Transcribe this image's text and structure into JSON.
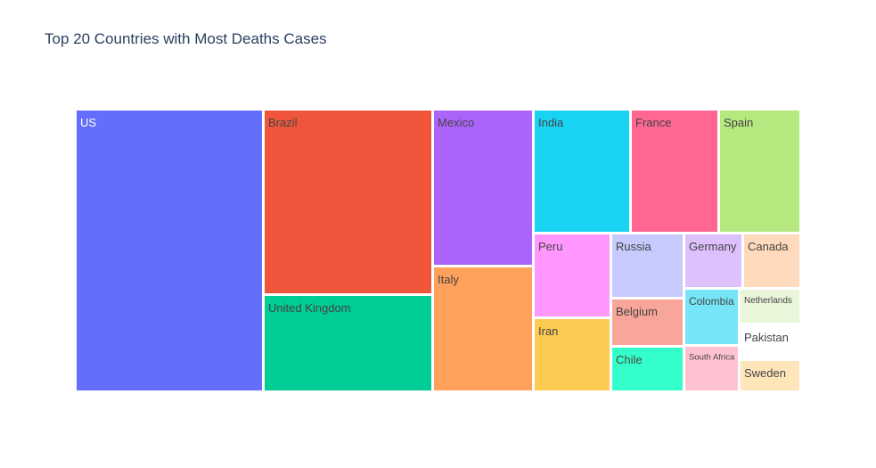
{
  "chart_data": {
    "type": "treemap",
    "title": "Top 20 Countries with Most Deaths Cases",
    "tiles": [
      {
        "label": "US",
        "color": "#636efa",
        "text_color": "#ffffff"
      },
      {
        "label": "Brazil",
        "color": "#ef553b",
        "text_color": "#444444"
      },
      {
        "label": "United Kingdom",
        "color": "#00cc96",
        "text_color": "#444444"
      },
      {
        "label": "Mexico",
        "color": "#ab63fa",
        "text_color": "#444444"
      },
      {
        "label": "Italy",
        "color": "#ffa15a",
        "text_color": "#444444"
      },
      {
        "label": "India",
        "color": "#19d3f3",
        "text_color": "#444444"
      },
      {
        "label": "France",
        "color": "#ff6692",
        "text_color": "#444444"
      },
      {
        "label": "Spain",
        "color": "#b6e880",
        "text_color": "#444444"
      },
      {
        "label": "Peru",
        "color": "#ff97ff",
        "text_color": "#444444"
      },
      {
        "label": "Iran",
        "color": "#fecb52",
        "text_color": "#444444"
      },
      {
        "label": "Russia",
        "color": "#c6cafd",
        "text_color": "#444444"
      },
      {
        "label": "Belgium",
        "color": "#f8a69a",
        "text_color": "#444444"
      },
      {
        "label": "Chile",
        "color": "#33ffcb",
        "text_color": "#444444"
      },
      {
        "label": "Germany",
        "color": "#ddc1fc",
        "text_color": "#444444"
      },
      {
        "label": "Colombia",
        "color": "#76e5f8",
        "text_color": "#444444"
      },
      {
        "label": "South Africa",
        "color": "#ffc2d3",
        "text_color": "#444444"
      },
      {
        "label": "Canada",
        "color": "#ffdabd",
        "text_color": "#444444"
      },
      {
        "label": "Netherlands",
        "color": "#e9f6d9",
        "text_color": "#444444"
      },
      {
        "label": "Pakistan",
        "color": "#ffffff",
        "text_color": "#444444"
      },
      {
        "label": "Sweden",
        "color": "#ffe5ba",
        "text_color": "#444444"
      }
    ]
  }
}
